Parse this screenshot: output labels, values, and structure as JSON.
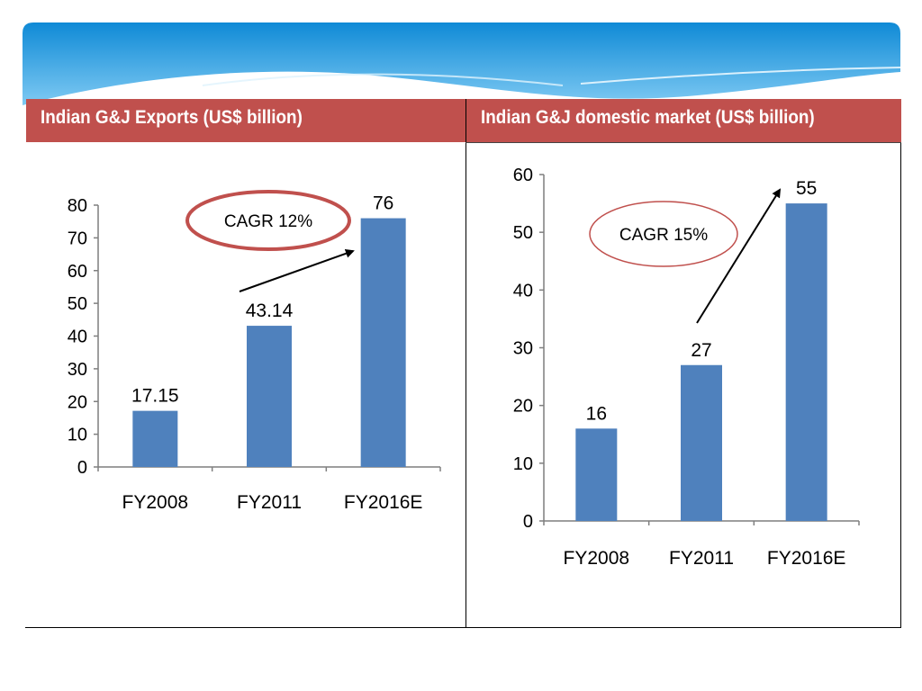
{
  "colors": {
    "header_bg": "#c0504d",
    "bar": "#4f81bd",
    "ellipse": "#c0504d",
    "banner_top": "#1793d9",
    "banner_bottom": "#8fd0f5"
  },
  "table": {
    "left_header": "Indian G&J Exports (US$ billion)",
    "right_header": "Indian G&J domestic market (US$ billion)"
  },
  "chart_data": [
    {
      "type": "bar",
      "title": "Indian G&J Exports (US$ billion)",
      "categories": [
        "FY2008",
        "FY2011",
        "FY2016E"
      ],
      "values": [
        17.15,
        43.14,
        76
      ],
      "value_labels": [
        "17.15",
        "43.14",
        "76"
      ],
      "ylim": [
        0,
        80
      ],
      "yticks": [
        0,
        10,
        20,
        30,
        40,
        50,
        60,
        70,
        80
      ],
      "annotation": "CAGR 12%",
      "arrow": "from FY2011 bar label to FY2016E bar"
    },
    {
      "type": "bar",
      "title": "Indian G&J domestic market (US$ billion)",
      "categories": [
        "FY2008",
        "FY2011",
        "FY2016E"
      ],
      "values": [
        16,
        27,
        55
      ],
      "value_labels": [
        "16",
        "27",
        "55"
      ],
      "ylim": [
        0,
        60
      ],
      "yticks": [
        0,
        10,
        20,
        30,
        40,
        50,
        60
      ],
      "annotation": "CAGR 15%",
      "arrow": "from FY2011 bar label to FY2016E label"
    }
  ]
}
